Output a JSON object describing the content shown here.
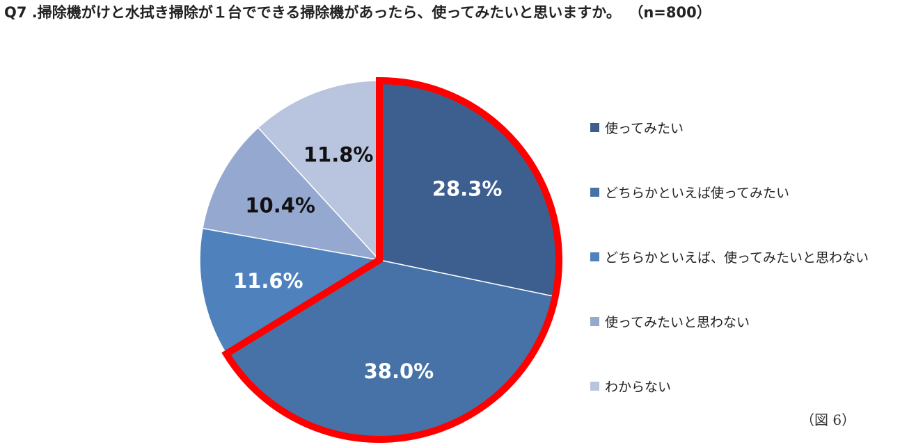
{
  "header": {
    "question": "Q7 .掃除機がけと水拭き掃除が１台でできる掃除機があったら、使ってみたいと思いますか。",
    "sample": "（n=800）"
  },
  "figure_note": "（図 6）",
  "chart_data": {
    "type": "pie",
    "title": "Q7 .掃除機がけと水拭き掃除が１台でできる掃除機があったら、使ってみたいと思いますか。（n=800）",
    "start": "12 o'clock, clockwise",
    "legend_position": "right",
    "highlight": {
      "categories": [
        "使ってみたい",
        "どちらかといえば使ってみたい"
      ],
      "outline_color": "#ff0000"
    },
    "slices": [
      {
        "label": "使ってみたい",
        "value": 28.3,
        "display": "28.3%",
        "color": "#3d5f8f",
        "label_color": "#ffffff"
      },
      {
        "label": "どちらかといえば使ってみたい",
        "value": 38.0,
        "display": "38.0%",
        "color": "#4672a7",
        "label_color": "#ffffff"
      },
      {
        "label": "どちらかといえば、使ってみたいと思わない",
        "value": 11.6,
        "display": "11.6%",
        "color": "#4f81bd",
        "label_color": "#ffffff"
      },
      {
        "label": "使ってみたいと思わない",
        "value": 10.4,
        "display": "10.4%",
        "color": "#95a8cf",
        "label_color": "#111111"
      },
      {
        "label": "わからない",
        "value": 11.8,
        "display": "11.8%",
        "color": "#b9c5df",
        "label_color": "#111111"
      }
    ]
  }
}
